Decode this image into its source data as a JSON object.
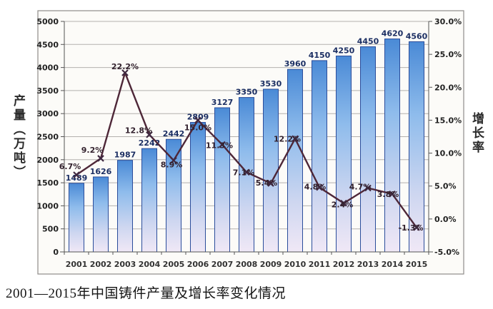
{
  "caption": "2001—2015年中国铸件产量及增长率变化情况",
  "left_axis": {
    "title": "产量（万吨）",
    "ticks": [
      "5000",
      "4500",
      "4000",
      "3500",
      "3000",
      "2500",
      "2000",
      "1500",
      "1000",
      "500",
      "0"
    ]
  },
  "right_axis": {
    "title": "增长率",
    "ticks": [
      "30.0%",
      "25.0%",
      "20.0%",
      "15.0%",
      "10.0%",
      "5.0%",
      "0.0%",
      "-5.0%"
    ]
  },
  "chart_data": {
    "type": "combo_bar_line",
    "title": "2001—2015年中国铸件产量及增长率变化情况",
    "categories": [
      "2001",
      "2002",
      "2003",
      "2004",
      "2005",
      "2006",
      "2007",
      "2008",
      "2009",
      "2010",
      "2011",
      "2012",
      "2013",
      "2014",
      "2015"
    ],
    "ylim_left": [
      0,
      5000
    ],
    "ylim_right": [
      -5,
      30
    ],
    "grid": true,
    "legend": "none",
    "series": [
      {
        "name": "产量(万吨)",
        "type": "bar",
        "axis": "left",
        "values": [
          1489,
          1626,
          1987,
          2242,
          2442,
          2809,
          3127,
          3350,
          3530,
          3960,
          4150,
          4250,
          4450,
          4620,
          4560
        ]
      },
      {
        "name": "增长率",
        "type": "line",
        "axis": "right",
        "values": [
          6.7,
          9.2,
          22.2,
          12.8,
          8.9,
          15.0,
          11.3,
          7.1,
          5.4,
          12.2,
          4.8,
          2.4,
          4.7,
          3.8,
          -1.3
        ],
        "labels": [
          "6.7%",
          "9.2%",
          "22.2%",
          "12.8%",
          "8.9%",
          "15.0%",
          "11.3%",
          "7.1%",
          "5.4%",
          "12.2%",
          "4.8%",
          "2.4%",
          "4.7%",
          "3.8%",
          "-1.3%"
        ],
        "label_offsets": [
          [
            -9,
            -8
          ],
          [
            -12,
            -8
          ],
          [
            0,
            -5
          ],
          [
            -15,
            -2
          ],
          [
            -3,
            10
          ],
          [
            0,
            14
          ],
          [
            -4,
            5
          ],
          [
            -4,
            4
          ],
          [
            -6,
            3
          ],
          [
            -11,
            4
          ],
          [
            -6,
            3
          ],
          [
            -2,
            6
          ],
          [
            -11,
            2
          ],
          [
            -6,
            4
          ],
          [
            -8,
            4
          ]
        ]
      }
    ]
  },
  "colors": {
    "panel_bg": "#fcfbf8",
    "panel_border": "#8f8d8a",
    "grid": "#b3b1ae",
    "axis": "#555555",
    "bar_gradient": [
      "#4a8ad6",
      "#8fbcec",
      "#cdd6f0",
      "#f0e8f6"
    ],
    "bar_border": "#2b4d9b",
    "bar_label": "#1c2f63",
    "line": "#4e2738",
    "marker": "#3f2840",
    "line_label": "#33222e",
    "tick_label": "#222222",
    "year_label": "#333333"
  }
}
